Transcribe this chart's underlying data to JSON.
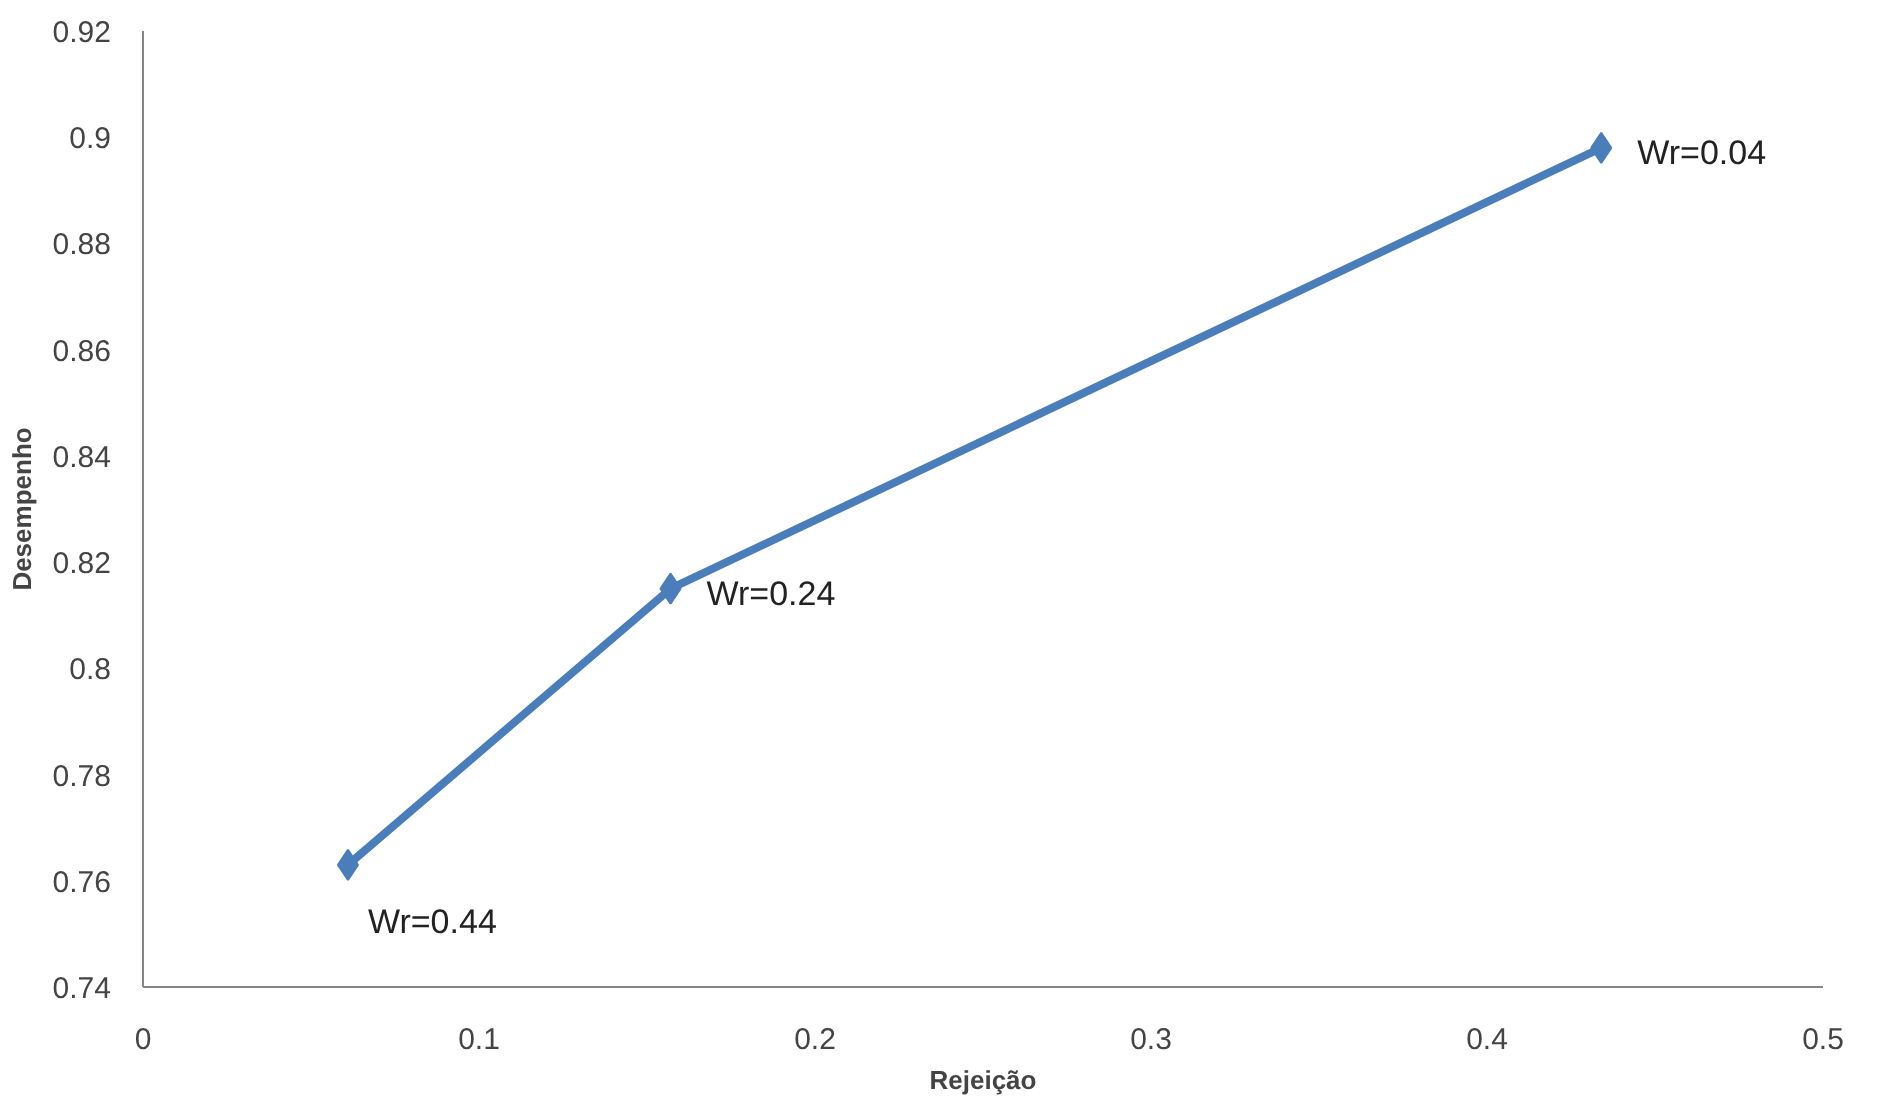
{
  "chart_data": {
    "type": "line",
    "xlabel": "Rejeição",
    "ylabel": "Desempenho",
    "x": [
      0.061,
      0.157,
      0.434
    ],
    "series": [
      {
        "color": "#4a7ebb",
        "values": [
          0.763,
          0.815,
          0.898
        ]
      }
    ],
    "xlim": [
      0,
      0.5
    ],
    "xticks": [
      0,
      0.1,
      0.2,
      0.3,
      0.4,
      0.5
    ],
    "ylim": [
      0.74,
      0.92
    ],
    "yticks": [
      0.74,
      0.76,
      0.78,
      0.8,
      0.82,
      0.84,
      0.86,
      0.88,
      0.9,
      0.92
    ],
    "marker": "diamond",
    "line_style": "solid",
    "annotations": [
      {
        "text": "Wr=0.44",
        "x": 0.061,
        "y": 0.763
      },
      {
        "text": "Wr=0.24",
        "x": 0.157,
        "y": 0.815
      },
      {
        "text": "Wr=0.04",
        "x": 0.434,
        "y": 0.898
      }
    ]
  }
}
